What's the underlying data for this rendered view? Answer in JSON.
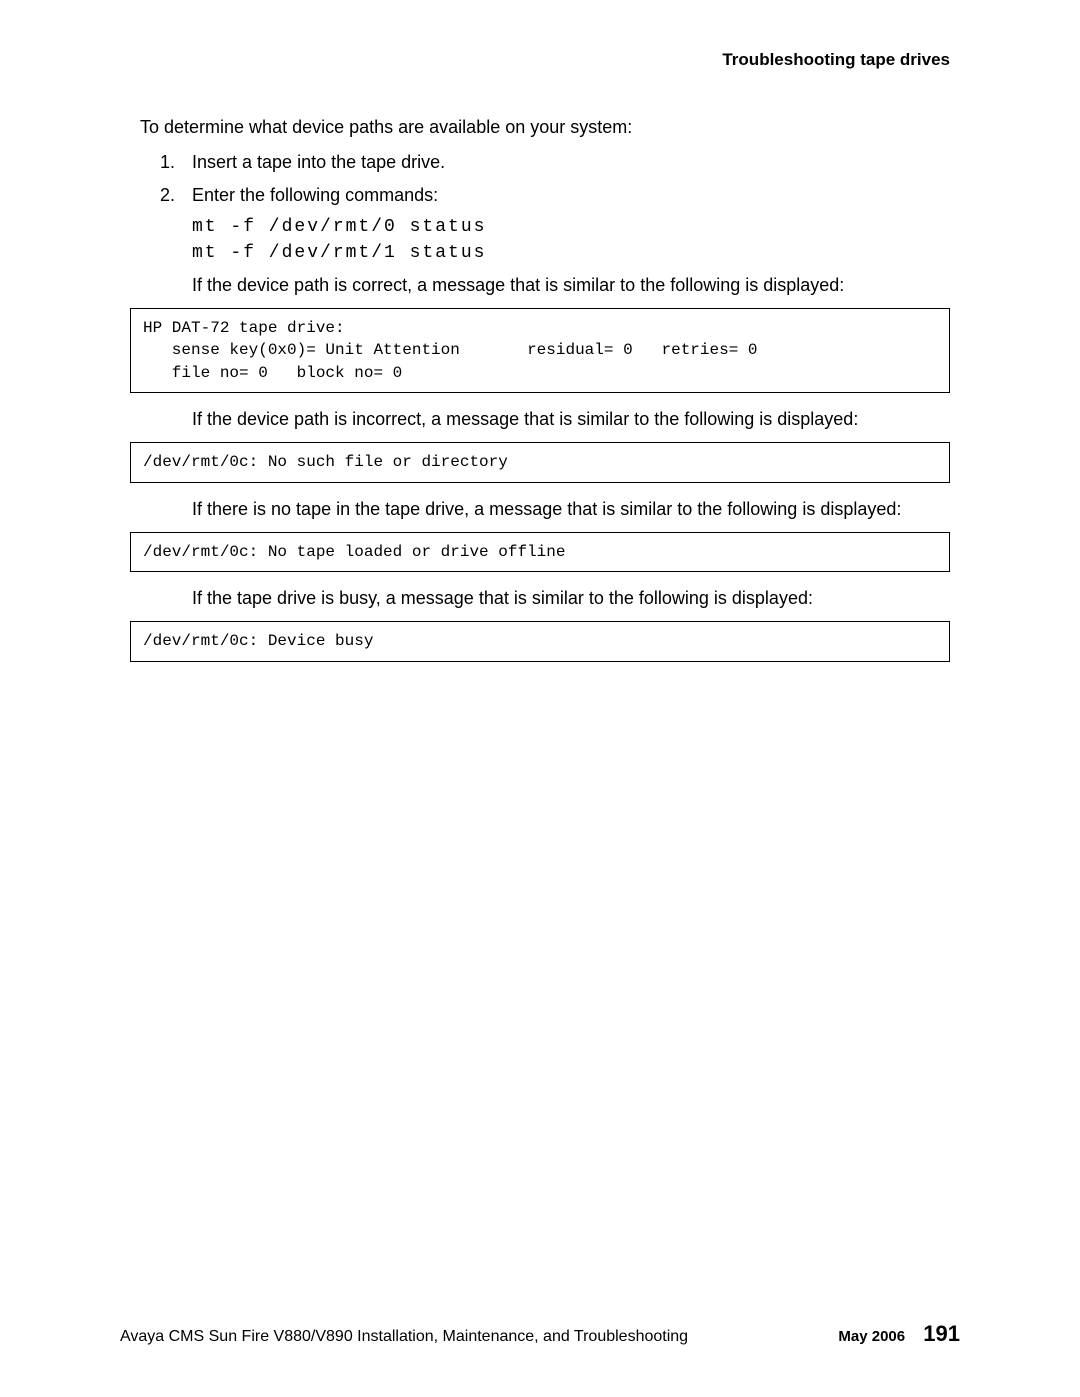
{
  "header": "Troubleshooting tape drives",
  "intro": "To determine what device paths are available on your system:",
  "step1": "Insert a tape into the tape drive.",
  "step2": "Enter the following commands:",
  "cmd1": "mt -f /dev/rmt/0 status",
  "cmd2": "mt -f /dev/rmt/1 status",
  "cont1": "If the device path is correct, a message that is similar to the following is displayed:",
  "code1": "HP DAT-72 tape drive:\n   sense key(0x0)= Unit Attention       residual= 0   retries= 0\n   file no= 0   block no= 0",
  "cont2": "If the device path is incorrect, a message that is similar to the following is displayed:",
  "code2": "/dev/rmt/0c: No such file or directory",
  "cont3": "If there is no tape in the tape drive, a message that is similar to the following is displayed:",
  "code3": "/dev/rmt/0c: No tape loaded or drive offline",
  "cont4": "If the tape drive is busy, a message that is similar to the following is displayed:",
  "code4": "/dev/rmt/0c: Device busy",
  "footer_left": "Avaya CMS Sun Fire V880/V890 Installation, Maintenance, and Troubleshooting",
  "footer_date": "May 2006",
  "footer_page": "191"
}
